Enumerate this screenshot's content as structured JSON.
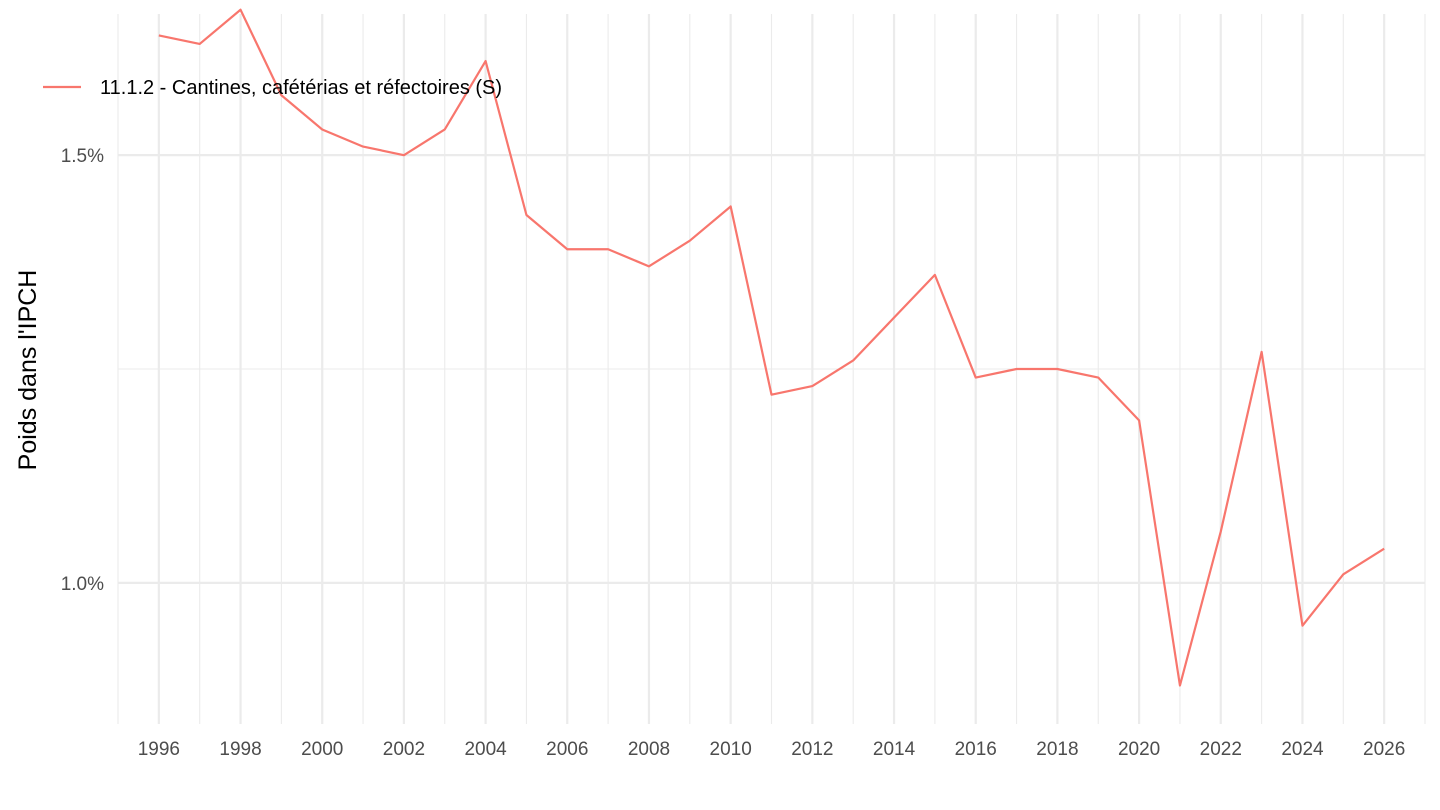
{
  "chart_data": {
    "type": "line",
    "title": "",
    "xlabel": "",
    "ylabel": "Poids dans l'IPCH",
    "xlim": [
      1995,
      2027
    ],
    "ylim": [
      0.835,
      1.665
    ],
    "x_ticks": [
      1996,
      1998,
      2000,
      2002,
      2004,
      2006,
      2008,
      2010,
      2012,
      2014,
      2016,
      2018,
      2020,
      2022,
      2024,
      2026
    ],
    "x_tick_labels": [
      "1996",
      "1998",
      "2000",
      "2002",
      "2004",
      "2006",
      "2008",
      "2010",
      "2012",
      "2014",
      "2016",
      "2018",
      "2020",
      "2022",
      "2024",
      "2026"
    ],
    "y_ticks": [
      1.0,
      1.5
    ],
    "y_tick_labels": [
      "1.0%",
      "1.5%"
    ],
    "y_minor_ticks": [
      1.25
    ],
    "grid": true,
    "legend_position": "top-left",
    "series": [
      {
        "name": "11.1.2 - Cantines, cafétérias et réfectoires (S)",
        "color": "#F8766D",
        "x": [
          1996,
          1997,
          1998,
          1999,
          2000,
          2001,
          2002,
          2003,
          2004,
          2005,
          2006,
          2007,
          2008,
          2009,
          2010,
          2011,
          2012,
          2013,
          2014,
          2015,
          2016,
          2017,
          2018,
          2019,
          2020,
          2021,
          2022,
          2023,
          2024,
          2025,
          2026
        ],
        "values": [
          1.64,
          1.63,
          1.67,
          1.57,
          1.53,
          1.51,
          1.5,
          1.53,
          1.61,
          1.43,
          1.39,
          1.39,
          1.37,
          1.4,
          1.44,
          1.22,
          1.23,
          1.26,
          1.31,
          1.36,
          1.24,
          1.25,
          1.25,
          1.24,
          1.19,
          0.88,
          1.06,
          1.27,
          0.95,
          1.01,
          1.04
        ]
      }
    ]
  }
}
